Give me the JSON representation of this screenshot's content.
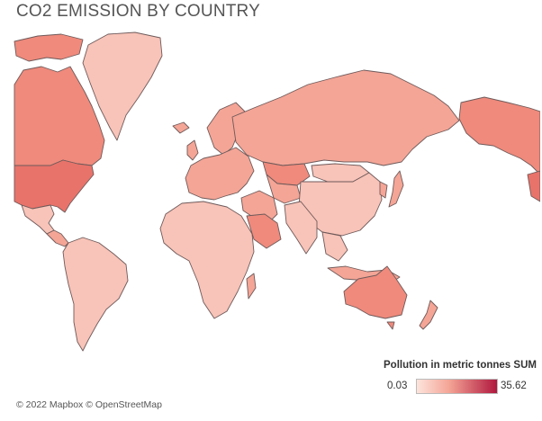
{
  "title": "CO2 EMISSION BY COUNTRY",
  "attribution": "© 2022 Mapbox © OpenStreetMap",
  "legend": {
    "title": "Pollution in metric tonnes SUM",
    "min": "0.03",
    "max": "35.62",
    "colors": {
      "low": "#fde4dc",
      "mid": "#f4a596",
      "high": "#b0173e"
    }
  },
  "map_data": {
    "type": "choropleth",
    "projection": "mercator",
    "measure": "Pollution in metric tonnes SUM",
    "regions": [
      {
        "name": "Canada",
        "level": "medium-high"
      },
      {
        "name": "Alaska",
        "level": "medium-high"
      },
      {
        "name": "United States",
        "level": "high"
      },
      {
        "name": "Mexico",
        "level": "low"
      },
      {
        "name": "Greenland",
        "level": "low"
      },
      {
        "name": "South America",
        "level": "low"
      },
      {
        "name": "Europe",
        "level": "medium"
      },
      {
        "name": "Africa",
        "level": "low"
      },
      {
        "name": "Arabian Peninsula",
        "level": "medium-high"
      },
      {
        "name": "Russia",
        "level": "medium"
      },
      {
        "name": "Kazakhstan",
        "level": "medium-high"
      },
      {
        "name": "Mongolia",
        "level": "low"
      },
      {
        "name": "China",
        "level": "low"
      },
      {
        "name": "South Asia",
        "level": "low"
      },
      {
        "name": "Japan",
        "level": "medium"
      },
      {
        "name": "Southeast Asia",
        "level": "low"
      },
      {
        "name": "Australia",
        "level": "medium-high"
      },
      {
        "name": "New Zealand",
        "level": "medium"
      }
    ]
  }
}
